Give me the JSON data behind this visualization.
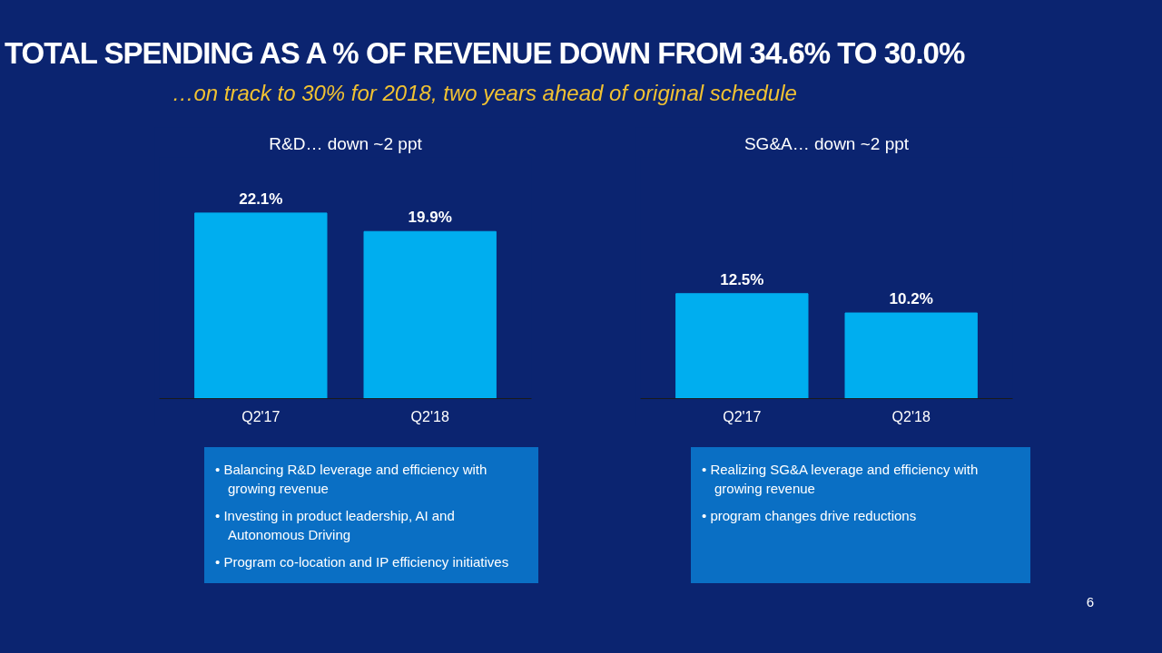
{
  "chart_data": [
    {
      "type": "bar",
      "title": "R&D… down ~2 ppt",
      "categories": [
        "Q2'17",
        "Q2'18"
      ],
      "values": [
        22.1,
        19.9
      ],
      "value_labels": [
        "22.1%",
        "19.9%"
      ],
      "color": "#00aeef",
      "grid": false,
      "legend": false,
      "annotations": [
        "TOTAL SPENDING AS A % OF REVENUE DOWN FROM 34.6% TO 30.0%",
        "…on track to 30% for 2018, two years ahead of original schedule",
        "• Balancing R&D leverage and efficiency with growing revenue",
        "• Investing in product leadership, AI and Autonomous Driving",
        "• Program co-location and IP efficiency initiatives"
      ]
    },
    {
      "type": "bar",
      "title": "SG&A… down ~2 ppt",
      "categories": [
        "Q2'17",
        "Q2'18"
      ],
      "values": [
        12.5,
        10.2
      ],
      "value_labels": [
        "12.5%",
        "10.2%"
      ],
      "color": "#00aeef",
      "grid": false,
      "legend": false,
      "annotations": [
        "• Realizing SG&A leverage and efficiency with growing revenue",
        "• program changes drive reductions",
        "6"
      ]
    }
  ]
}
